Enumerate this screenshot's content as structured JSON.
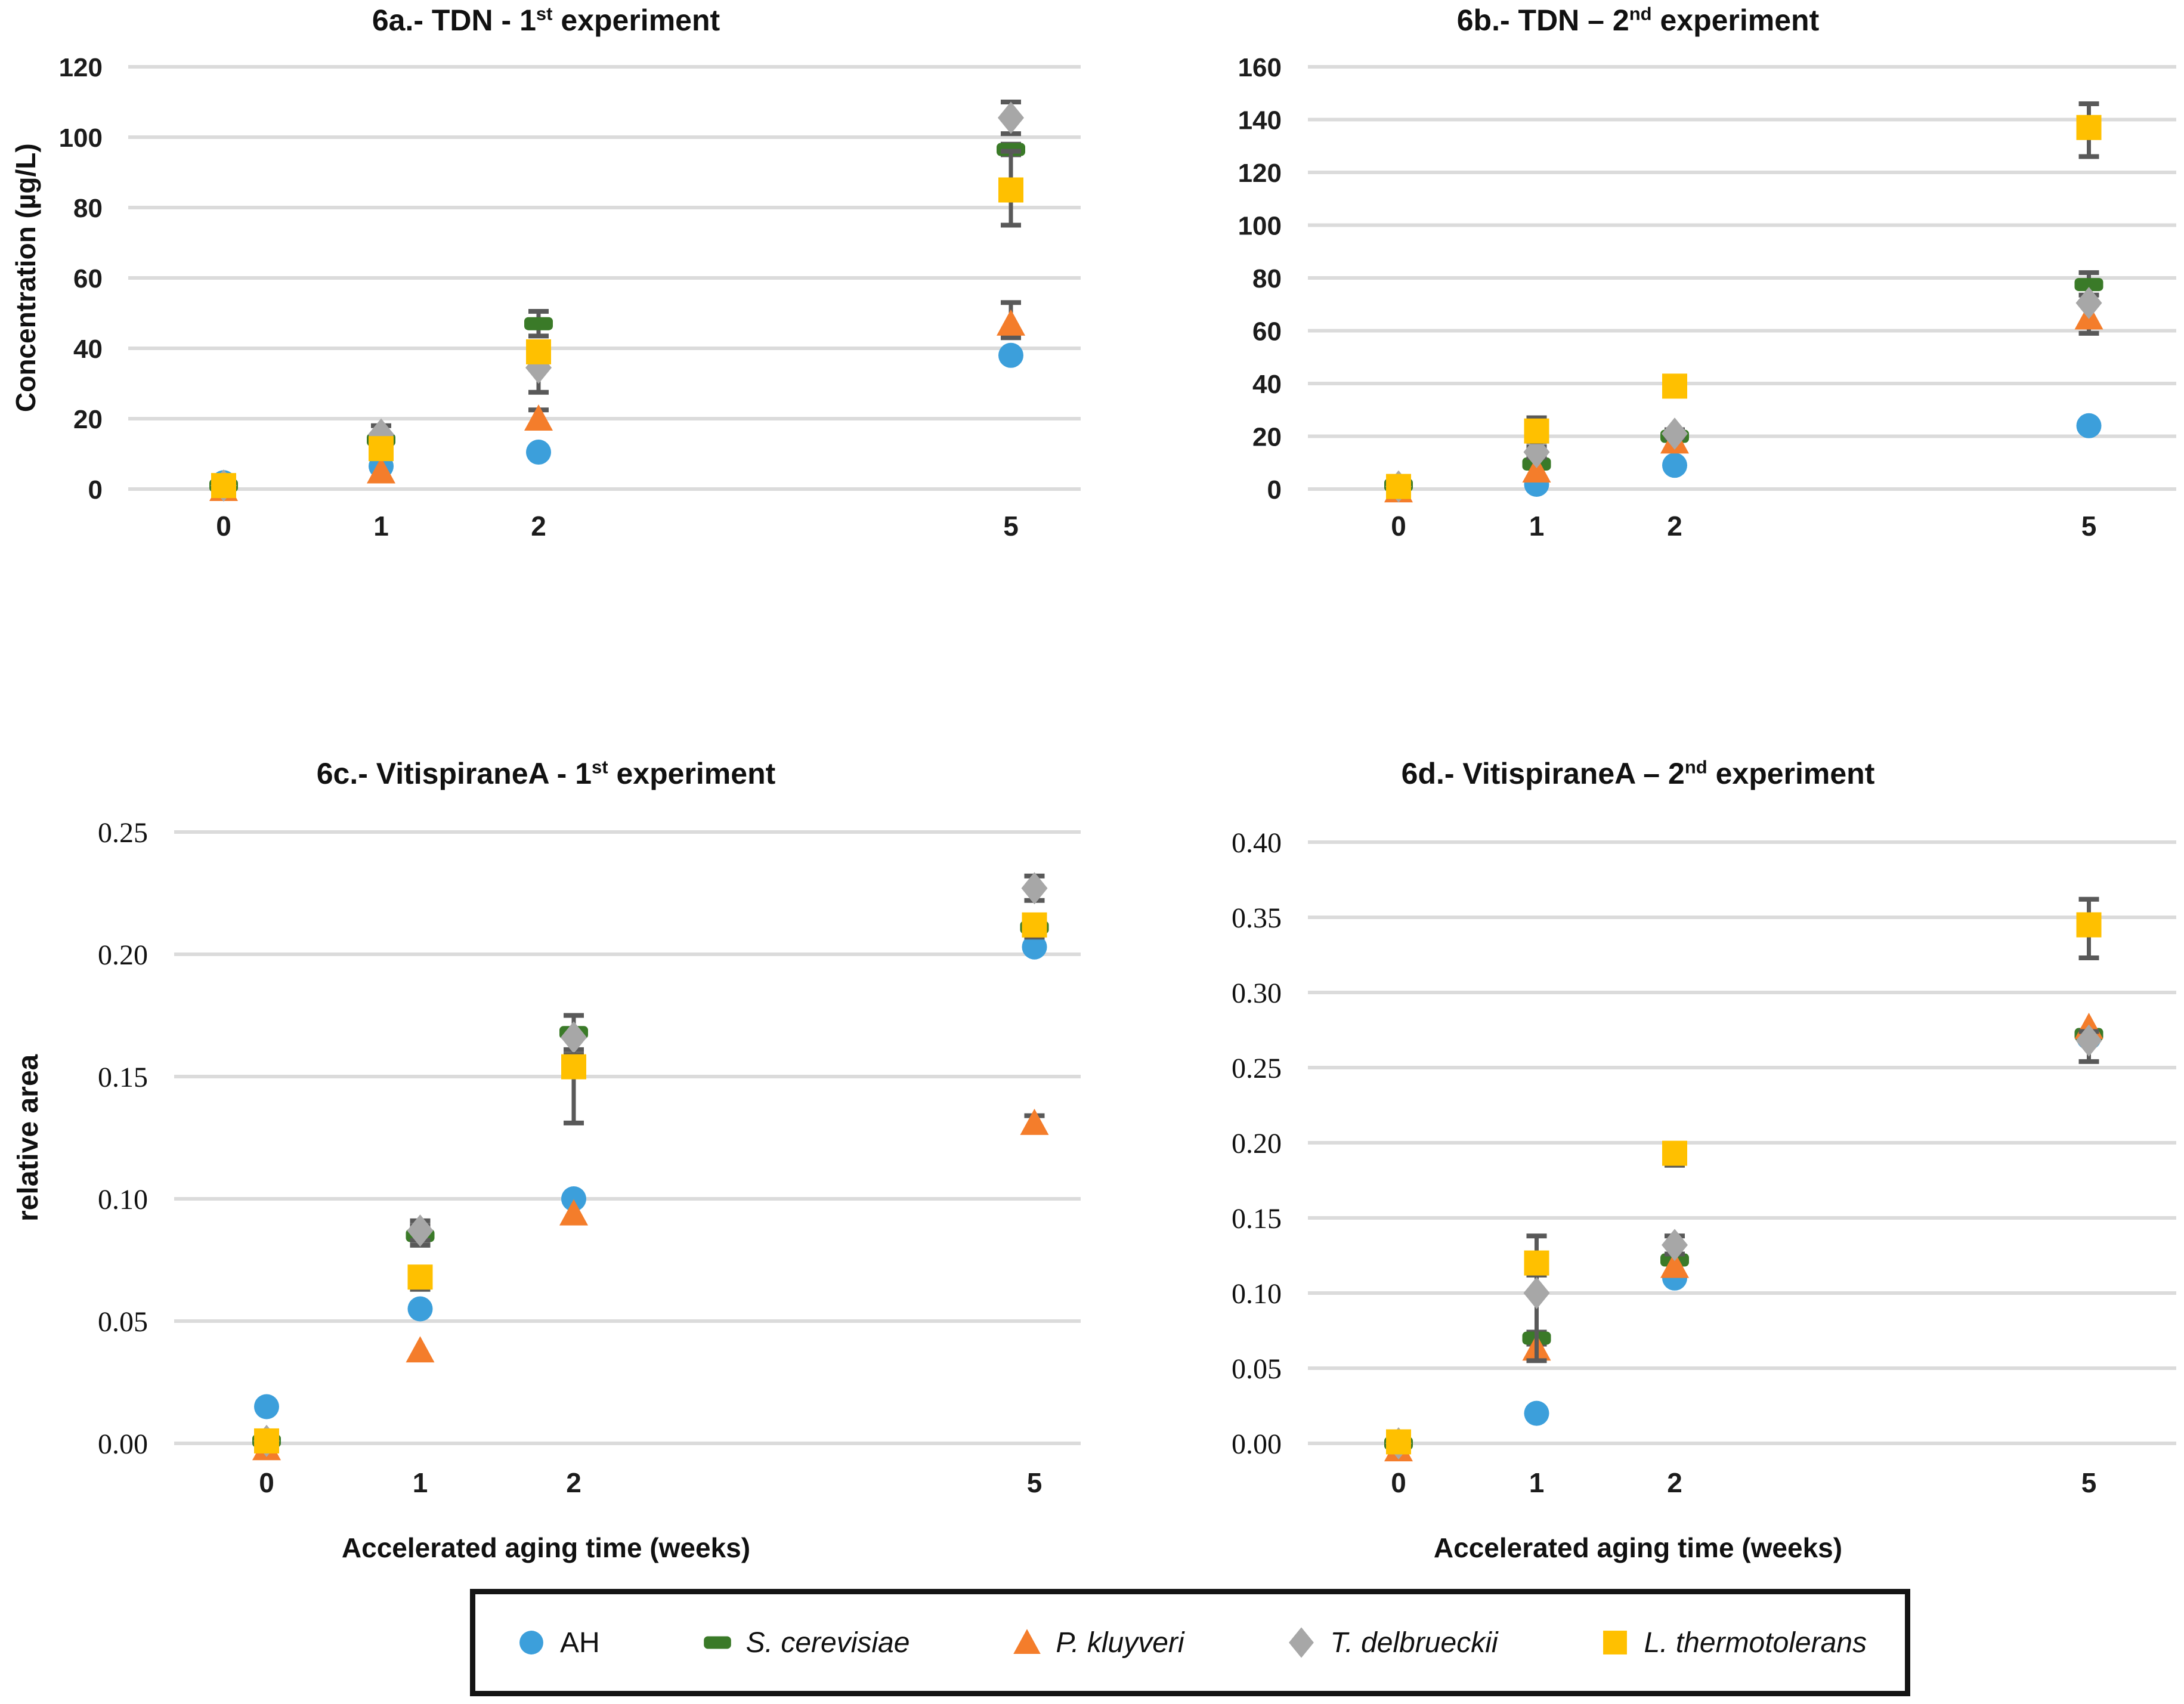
{
  "legend": {
    "items": [
      {
        "label": "AH",
        "italic": false,
        "marker": "circle",
        "color": "#3C9FDB"
      },
      {
        "label": "S. cerevisiae",
        "italic": true,
        "marker": "bar",
        "color": "#3A7A28"
      },
      {
        "label": "P. kluyveri",
        "italic": true,
        "marker": "triangle",
        "color": "#F47D2B"
      },
      {
        "label": "T. delbrueckii",
        "italic": true,
        "marker": "diamond",
        "color": "#A7A7A7"
      },
      {
        "label": "L. thermotolerans",
        "italic": true,
        "marker": "square",
        "color": "#FFC000"
      }
    ]
  },
  "chart_data": [
    {
      "id": "6a",
      "type": "scatter",
      "title": {
        "before": "6a.- TDN - 1",
        "sup": "st",
        "after": " experiment"
      },
      "ylabel": "Concentration (µg/L)",
      "xlabel": "",
      "ylim": [
        0,
        120
      ],
      "ystep": 20,
      "ydecimals": 0,
      "grid": true,
      "xticks": [
        0,
        1,
        2,
        5
      ],
      "series": [
        {
          "name": "AH",
          "marker": "circle",
          "color": "#3C9FDB",
          "points": [
            [
              0,
              1.8
            ],
            [
              1,
              6.5
            ],
            [
              2,
              10.5
            ],
            [
              5,
              38,
              1,
              1
            ]
          ]
        },
        {
          "name": "S. cerevisiae",
          "marker": "bar",
          "color": "#3A7A28",
          "points": [
            [
              0,
              1
            ],
            [
              1,
              14,
              1.5,
              1.5
            ],
            [
              2,
              47,
              3.5,
              3.5
            ],
            [
              5,
              96.5,
              1.5,
              1.5
            ]
          ]
        },
        {
          "name": "P. kluyveri",
          "marker": "triangle",
          "color": "#F47D2B",
          "points": [
            [
              0,
              0
            ],
            [
              1,
              5
            ],
            [
              2,
              20,
              2.5,
              2
            ],
            [
              5,
              47,
              6,
              4
            ]
          ]
        },
        {
          "name": "T. delbrueckii",
          "marker": "diamond",
          "color": "#A7A7A7",
          "points": [
            [
              0,
              1
            ],
            [
              1,
              15.5,
              2.5,
              2.5
            ],
            [
              2,
              34.5,
              3.5,
              7
            ],
            [
              5,
              105.5,
              4.5,
              4.5
            ]
          ]
        },
        {
          "name": "L. thermotolerans",
          "marker": "square",
          "color": "#FFC000",
          "points": [
            [
              0,
              1
            ],
            [
              1,
              11.5,
              1.5,
              1.5
            ],
            [
              2,
              39,
              2,
              2
            ],
            [
              5,
              85,
              11,
              10
            ]
          ]
        }
      ]
    },
    {
      "id": "6b",
      "type": "scatter",
      "title": {
        "before": "6b.- TDN – 2",
        "sup": "nd",
        "after": " experiment"
      },
      "ylabel": "",
      "xlabel": "",
      "ylim": [
        0,
        160
      ],
      "ystep": 20,
      "ydecimals": 0,
      "grid": true,
      "xticks": [
        0,
        1,
        2,
        5
      ],
      "series": [
        {
          "name": "AH",
          "marker": "circle",
          "color": "#3C9FDB",
          "points": [
            [
              0,
              1
            ],
            [
              1,
              1.8
            ],
            [
              2,
              9
            ],
            [
              5,
              24
            ]
          ]
        },
        {
          "name": "S. cerevisiae",
          "marker": "bar",
          "color": "#3A7A28",
          "points": [
            [
              0,
              1.5
            ],
            [
              1,
              9.5,
              1,
              1
            ],
            [
              2,
              20,
              1.5,
              1.5
            ],
            [
              5,
              77.5,
              4.5,
              4
            ]
          ]
        },
        {
          "name": "P. kluyveri",
          "marker": "triangle",
          "color": "#F47D2B",
          "points": [
            [
              0,
              -0.5
            ],
            [
              1,
              7
            ],
            [
              2,
              18
            ],
            [
              5,
              65,
              0,
              6
            ]
          ]
        },
        {
          "name": "T. delbrueckii",
          "marker": "diamond",
          "color": "#A7A7A7",
          "points": [
            [
              0,
              1
            ],
            [
              1,
              14,
              2,
              2
            ],
            [
              2,
              21,
              1.5,
              1.5
            ],
            [
              5,
              70.5
            ]
          ]
        },
        {
          "name": "L. thermotolerans",
          "marker": "square",
          "color": "#FFC000",
          "points": [
            [
              0,
              1
            ],
            [
              1,
              22,
              5,
              4
            ],
            [
              2,
              39
            ],
            [
              5,
              137,
              9,
              11
            ]
          ]
        }
      ]
    },
    {
      "id": "6c",
      "type": "scatter",
      "title": {
        "before": "6c.- VitispiraneA - 1",
        "sup": "st",
        "after": " experiment"
      },
      "ylabel": "relative area",
      "xlabel": "Accelerated aging time (weeks)",
      "ylim": [
        0,
        0.25
      ],
      "ystep": 0.05,
      "ydecimals": 2,
      "grid": true,
      "xticks": [
        0,
        1,
        2,
        5
      ],
      "series": [
        {
          "name": "AH",
          "marker": "circle",
          "color": "#3C9FDB",
          "points": [
            [
              0,
              0.015
            ],
            [
              1,
              0.055
            ],
            [
              2,
              0.1
            ],
            [
              5,
              0.203
            ]
          ]
        },
        {
          "name": "S. cerevisiae",
          "marker": "bar",
          "color": "#3A7A28",
          "points": [
            [
              0,
              0.001
            ],
            [
              1,
              0.085,
              0.004,
              0.004
            ],
            [
              2,
              0.168,
              0.007,
              0.007
            ],
            [
              5,
              0.211,
              0.004,
              0.004
            ]
          ]
        },
        {
          "name": "P. kluyveri",
          "marker": "triangle",
          "color": "#F47D2B",
          "points": [
            [
              0,
              -0.002
            ],
            [
              1,
              0.038
            ],
            [
              2,
              0.094
            ],
            [
              5,
              0.131,
              0.003,
              0.003
            ]
          ]
        },
        {
          "name": "T. delbrueckii",
          "marker": "diamond",
          "color": "#A7A7A7",
          "points": [
            [
              0,
              0.001
            ],
            [
              1,
              0.087,
              0.004,
              0.004
            ],
            [
              2,
              0.166,
              0.009,
              0.009
            ],
            [
              5,
              0.227,
              0.005,
              0.005
            ]
          ]
        },
        {
          "name": "L. thermotolerans",
          "marker": "square",
          "color": "#FFC000",
          "points": [
            [
              0,
              0.001
            ],
            [
              1,
              0.068,
              0.003,
              0.005
            ],
            [
              2,
              0.154,
              0.005,
              0.023
            ],
            [
              5,
              0.212,
              0.004,
              0.004
            ]
          ]
        }
      ]
    },
    {
      "id": "6d",
      "type": "scatter",
      "title": {
        "before": "6d.- VitispiraneA – 2",
        "sup": "nd",
        "after": " experiment"
      },
      "ylabel": "",
      "xlabel": "Accelerated aging time (weeks)",
      "ylim": [
        0,
        0.4
      ],
      "ystep": 0.05,
      "ydecimals": 2,
      "grid": true,
      "xticks": [
        0,
        1,
        2,
        5
      ],
      "series": [
        {
          "name": "AH",
          "marker": "circle",
          "color": "#3C9FDB",
          "points": [
            [
              0,
              -0.002
            ],
            [
              1,
              0.02
            ],
            [
              2,
              0.11
            ],
            [
              5,
              0.27
            ]
          ]
        },
        {
          "name": "S. cerevisiae",
          "marker": "bar",
          "color": "#3A7A28",
          "points": [
            [
              0,
              0.0
            ],
            [
              1,
              0.07,
              0.004,
              0.004
            ],
            [
              2,
              0.122
            ],
            [
              5,
              0.272
            ]
          ]
        },
        {
          "name": "P. kluyveri",
          "marker": "triangle",
          "color": "#F47D2B",
          "points": [
            [
              0,
              -0.004
            ],
            [
              1,
              0.063
            ],
            [
              2,
              0.118
            ],
            [
              5,
              0.277
            ]
          ]
        },
        {
          "name": "T. delbrueckii",
          "marker": "diamond",
          "color": "#A7A7A7",
          "points": [
            [
              0,
              0.0
            ],
            [
              1,
              0.1,
              0.012,
              0.045
            ],
            [
              2,
              0.132,
              0.006,
              0.006
            ],
            [
              5,
              0.268,
              0.006,
              0.014
            ]
          ]
        },
        {
          "name": "L. thermotolerans",
          "marker": "square",
          "color": "#FFC000",
          "points": [
            [
              0,
              0.001
            ],
            [
              1,
              0.12,
              0.018,
              0.008
            ],
            [
              2,
              0.193,
              0.005,
              0.008
            ],
            [
              5,
              0.345,
              0.017,
              0.022
            ]
          ]
        }
      ]
    }
  ],
  "style": {
    "grid_color": "#DBDBDB",
    "errorbar_color": "#595959"
  }
}
